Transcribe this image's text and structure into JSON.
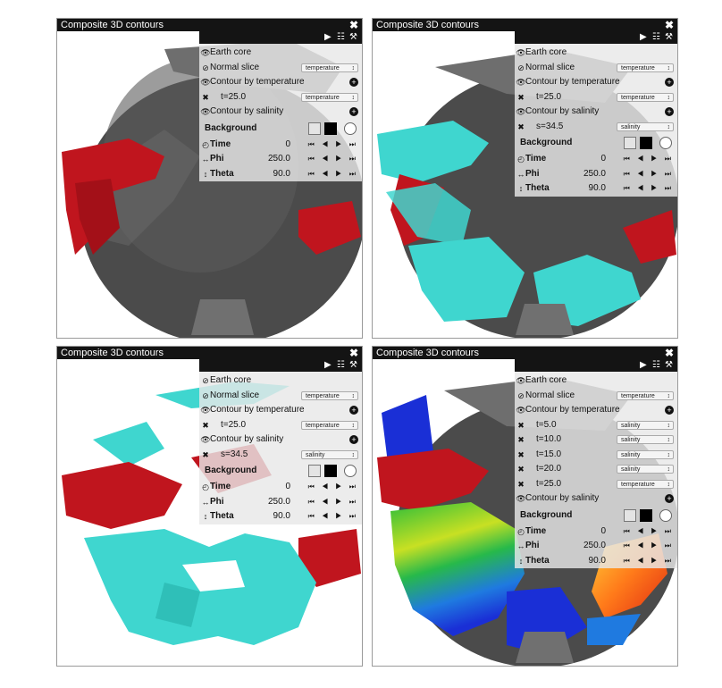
{
  "panels": [
    {
      "title": "Composite 3D contours",
      "toolbar": {
        "play_icon": "▶",
        "expand_icon": "☷",
        "tools_icon": "⚒",
        "close_icon": "✖"
      },
      "rows": [
        {
          "type": "toggle",
          "eye": "👁",
          "label": "Earth core"
        },
        {
          "type": "toggle_select",
          "eye": "⊘",
          "label": "Normal slice",
          "select": "temperature"
        },
        {
          "type": "toggle_plus",
          "eye": "👁",
          "label": "Contour by temperature"
        },
        {
          "type": "item",
          "label": "t=25.0",
          "select": "temperature"
        },
        {
          "type": "toggle_plus",
          "eye": "👁",
          "label": "Contour by salinity"
        }
      ],
      "background_label": "Background",
      "params": [
        {
          "icon": "◴",
          "label": "Time",
          "value": "0"
        },
        {
          "icon": "↔",
          "label": "Phi",
          "value": "250.0"
        },
        {
          "icon": "↕",
          "label": "Theta",
          "value": "90.0"
        }
      ]
    },
    {
      "title": "Composite 3D contours",
      "toolbar": {
        "play_icon": "▶",
        "expand_icon": "☷",
        "tools_icon": "⚒",
        "close_icon": "✖"
      },
      "rows": [
        {
          "type": "toggle",
          "eye": "👁",
          "label": "Earth core"
        },
        {
          "type": "toggle_select",
          "eye": "⊘",
          "label": "Normal slice",
          "select": "temperature"
        },
        {
          "type": "toggle_plus",
          "eye": "👁",
          "label": "Contour by temperature"
        },
        {
          "type": "item",
          "label": "t=25.0",
          "select": "temperature"
        },
        {
          "type": "toggle_plus",
          "eye": "👁",
          "label": "Contour by salinity"
        },
        {
          "type": "item",
          "label": "s=34.5",
          "select": "salinity"
        }
      ],
      "background_label": "Background",
      "params": [
        {
          "icon": "◴",
          "label": "Time",
          "value": "0"
        },
        {
          "icon": "↔",
          "label": "Phi",
          "value": "250.0"
        },
        {
          "icon": "↕",
          "label": "Theta",
          "value": "90.0"
        }
      ]
    },
    {
      "title": "Composite 3D contours",
      "toolbar": {
        "play_icon": "▶",
        "expand_icon": "☷",
        "tools_icon": "⚒",
        "close_icon": "✖"
      },
      "rows": [
        {
          "type": "toggle",
          "eye": "⊘",
          "label": "Earth core"
        },
        {
          "type": "toggle_select",
          "eye": "⊘",
          "label": "Normal slice",
          "select": "temperature"
        },
        {
          "type": "toggle_plus",
          "eye": "👁",
          "label": "Contour by temperature"
        },
        {
          "type": "item",
          "label": "t=25.0",
          "select": "temperature"
        },
        {
          "type": "toggle_plus",
          "eye": "👁",
          "label": "Contour by salinity"
        },
        {
          "type": "item",
          "label": "s=34.5",
          "select": "salinity"
        }
      ],
      "background_label": "Background",
      "params": [
        {
          "icon": "◴",
          "label": "Time",
          "value": "0"
        },
        {
          "icon": "↔",
          "label": "Phi",
          "value": "250.0"
        },
        {
          "icon": "↕",
          "label": "Theta",
          "value": "90.0"
        }
      ]
    },
    {
      "title": "Composite 3D contours",
      "toolbar": {
        "play_icon": "▶",
        "expand_icon": "☷",
        "tools_icon": "⚒",
        "close_icon": "✖"
      },
      "rows": [
        {
          "type": "toggle",
          "eye": "👁",
          "label": "Earth core"
        },
        {
          "type": "toggle_select",
          "eye": "⊘",
          "label": "Normal slice",
          "select": "temperature"
        },
        {
          "type": "toggle_plus",
          "eye": "👁",
          "label": "Contour by temperature"
        },
        {
          "type": "item",
          "label": "t=5.0",
          "select": "salinity"
        },
        {
          "type": "item",
          "label": "t=10.0",
          "select": "salinity"
        },
        {
          "type": "item",
          "label": "t=15.0",
          "select": "salinity"
        },
        {
          "type": "item",
          "label": "t=20.0",
          "select": "salinity"
        },
        {
          "type": "item",
          "label": "t=25.0",
          "select": "temperature"
        },
        {
          "type": "toggle_plus",
          "eye": "👁",
          "label": "Contour by salinity"
        }
      ],
      "background_label": "Background",
      "params": [
        {
          "icon": "◴",
          "label": "Time",
          "value": "0"
        },
        {
          "icon": "↔",
          "label": "Phi",
          "value": "250.0"
        },
        {
          "icon": "↕",
          "label": "Theta",
          "value": "90.0"
        }
      ]
    }
  ],
  "nav_glyphs": "⏮ ◀ ▶ ⏭",
  "colors": {
    "core": "#4a4a4a",
    "temperature_contour": "#c0151e",
    "salinity_contour": "#3fd6cf",
    "titlebar": "#141414"
  }
}
